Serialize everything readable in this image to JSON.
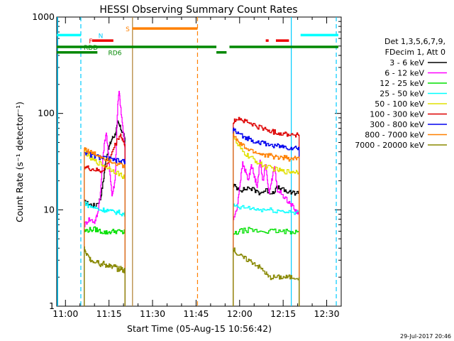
{
  "chart_data": {
    "type": "line",
    "title": "HESSI Observing Summary Count Rates",
    "xlabel": "Start Time (05-Aug-15 10:56:42)",
    "ylabel": "Count Rate (s⁻¹ detector⁻¹)",
    "y_scale": "log",
    "ylim": [
      1,
      1000
    ],
    "xlim_minutes_of_day": [
      657,
      755
    ],
    "x_ticks": [
      {
        "label": "11:00",
        "minute": 660
      },
      {
        "label": "11:15",
        "minute": 675
      },
      {
        "label": "11:30",
        "minute": 690
      },
      {
        "label": "11:45",
        "minute": 705
      },
      {
        "label": "12:00",
        "minute": 720
      },
      {
        "label": "12:15",
        "minute": 735
      },
      {
        "label": "12:30",
        "minute": 750
      }
    ],
    "y_tick_labels": [
      "1",
      "10",
      "100",
      "1000"
    ],
    "legend_placement": "right",
    "legend_header": [
      "Det 1,3,5,6,7,9,",
      "FDecim 1, Att 0"
    ],
    "timestamp": "29-Jul-2017 20:46",
    "flag_labels": {
      "N": "N",
      "S": "S",
      "F": "F",
      "RDD": "RDD",
      "RD6": "RD6"
    },
    "series": [
      {
        "name": "3 - 6 keV",
        "color": "#000000",
        "seg1": [
          [
            666.5,
            12
          ],
          [
            668,
            11.5
          ],
          [
            670,
            11
          ],
          [
            672,
            13
          ],
          [
            673,
            20
          ],
          [
            674,
            35
          ],
          [
            675,
            45
          ],
          [
            676,
            55
          ],
          [
            677,
            60
          ],
          [
            678,
            80
          ],
          [
            679,
            70
          ],
          [
            680,
            60
          ],
          [
            680.5,
            55
          ]
        ],
        "seg2": [
          [
            717.8,
            18
          ],
          [
            719,
            17
          ],
          [
            721,
            16
          ],
          [
            723,
            17
          ],
          [
            725,
            16
          ],
          [
            727,
            15
          ],
          [
            729,
            16
          ],
          [
            731,
            15
          ],
          [
            733,
            17
          ],
          [
            735,
            16
          ],
          [
            737,
            15
          ],
          [
            739,
            15
          ],
          [
            740.5,
            15
          ]
        ]
      },
      {
        "name": "6 - 12 keV",
        "color": "#ff00ff",
        "seg1": [
          [
            666.5,
            7
          ],
          [
            668,
            8
          ],
          [
            670,
            7.5
          ],
          [
            671,
            9
          ],
          [
            672,
            15
          ],
          [
            673,
            40
          ],
          [
            674,
            65
          ],
          [
            675,
            30
          ],
          [
            676,
            14
          ],
          [
            677,
            20
          ],
          [
            678,
            130
          ],
          [
            678.5,
            170
          ],
          [
            679,
            110
          ],
          [
            680,
            60
          ],
          [
            680.5,
            45
          ]
        ],
        "seg2": [
          [
            717.8,
            8
          ],
          [
            719,
            10
          ],
          [
            720,
            18
          ],
          [
            721,
            30
          ],
          [
            722,
            25
          ],
          [
            723,
            20
          ],
          [
            724,
            30
          ],
          [
            725,
            22
          ],
          [
            726,
            18
          ],
          [
            727,
            32
          ],
          [
            728,
            20
          ],
          [
            729,
            30
          ],
          [
            730,
            15
          ],
          [
            731,
            20
          ],
          [
            732,
            28
          ],
          [
            733,
            16
          ],
          [
            735,
            14
          ],
          [
            737,
            12
          ],
          [
            739,
            10
          ],
          [
            740.5,
            9
          ]
        ]
      },
      {
        "name": "12 - 25 keV",
        "color": "#00e000",
        "seg1": [
          [
            666.5,
            6
          ],
          [
            668,
            6.2
          ],
          [
            670,
            6.3
          ],
          [
            672,
            6
          ],
          [
            674,
            5.8
          ],
          [
            676,
            6
          ],
          [
            678,
            6
          ],
          [
            680,
            5.8
          ],
          [
            680.5,
            6
          ]
        ],
        "seg2": [
          [
            717.8,
            5.5
          ],
          [
            720,
            6
          ],
          [
            723,
            6.2
          ],
          [
            726,
            6
          ],
          [
            729,
            6
          ],
          [
            732,
            6
          ],
          [
            735,
            5.9
          ],
          [
            738,
            6
          ],
          [
            740.5,
            6
          ]
        ]
      },
      {
        "name": "25 - 50 keV",
        "color": "#00ffff",
        "seg1": [
          [
            666.5,
            12
          ],
          [
            668,
            11
          ],
          [
            670,
            10.5
          ],
          [
            672,
            10
          ],
          [
            674,
            10
          ],
          [
            676,
            9.5
          ],
          [
            678,
            9.5
          ],
          [
            680,
            9
          ],
          [
            680.5,
            9
          ]
        ],
        "seg2": [
          [
            717.8,
            11
          ],
          [
            720,
            10.5
          ],
          [
            723,
            10.5
          ],
          [
            726,
            10
          ],
          [
            729,
            10
          ],
          [
            732,
            9.8
          ],
          [
            735,
            9.6
          ],
          [
            738,
            9.5
          ],
          [
            740.5,
            9.5
          ]
        ]
      },
      {
        "name": "50 - 100 keV",
        "color": "#e0e000",
        "seg1": [
          [
            666.5,
            42
          ],
          [
            668,
            35
          ],
          [
            670,
            32
          ],
          [
            672,
            30
          ],
          [
            674,
            28
          ],
          [
            676,
            26
          ],
          [
            678,
            24
          ],
          [
            680,
            22
          ],
          [
            680.5,
            22
          ]
        ],
        "seg2": [
          [
            717.8,
            60
          ],
          [
            719,
            48
          ],
          [
            721,
            40
          ],
          [
            723,
            36
          ],
          [
            725,
            33
          ],
          [
            727,
            30
          ],
          [
            729,
            28
          ],
          [
            731,
            27
          ],
          [
            733,
            26
          ],
          [
            735,
            25
          ],
          [
            737,
            25
          ],
          [
            739,
            25
          ],
          [
            740.5,
            25
          ]
        ]
      },
      {
        "name": "100 - 300 keV",
        "color": "#dd0000",
        "seg1": [
          [
            666.5,
            28
          ],
          [
            668,
            27
          ],
          [
            670,
            26
          ],
          [
            672,
            25
          ],
          [
            674,
            28
          ],
          [
            676,
            40
          ],
          [
            678,
            55
          ],
          [
            679,
            60
          ],
          [
            680,
            50
          ],
          [
            680.5,
            48
          ]
        ],
        "seg2": [
          [
            717.8,
            80
          ],
          [
            719,
            90
          ],
          [
            721,
            85
          ],
          [
            723,
            80
          ],
          [
            725,
            75
          ],
          [
            727,
            72
          ],
          [
            729,
            68
          ],
          [
            731,
            65
          ],
          [
            733,
            63
          ],
          [
            735,
            62
          ],
          [
            737,
            61
          ],
          [
            739,
            60
          ],
          [
            740.5,
            60
          ]
        ]
      },
      {
        "name": "300 - 800 keV",
        "color": "#0000ee",
        "seg1": [
          [
            666.5,
            40
          ],
          [
            668,
            38
          ],
          [
            670,
            36
          ],
          [
            672,
            35
          ],
          [
            674,
            34
          ],
          [
            676,
            33
          ],
          [
            678,
            32
          ],
          [
            680,
            32
          ],
          [
            680.5,
            31
          ]
        ],
        "seg2": [
          [
            717.8,
            70
          ],
          [
            719,
            62
          ],
          [
            721,
            58
          ],
          [
            723,
            55
          ],
          [
            725,
            52
          ],
          [
            727,
            50
          ],
          [
            729,
            48
          ],
          [
            731,
            47
          ],
          [
            733,
            46
          ],
          [
            735,
            45
          ],
          [
            737,
            44
          ],
          [
            739,
            44
          ],
          [
            740.5,
            44
          ]
        ]
      },
      {
        "name": "800 - 7000 keV",
        "color": "#ff8000",
        "seg1": [
          [
            666.5,
            44
          ],
          [
            668,
            40
          ],
          [
            670,
            38
          ],
          [
            672,
            36
          ],
          [
            674,
            34
          ],
          [
            676,
            32
          ],
          [
            678,
            30
          ],
          [
            680,
            28
          ],
          [
            680.5,
            28
          ]
        ],
        "seg2": [
          [
            717.8,
            62
          ],
          [
            719,
            52
          ],
          [
            721,
            46
          ],
          [
            723,
            42
          ],
          [
            725,
            40
          ],
          [
            727,
            38
          ],
          [
            729,
            37
          ],
          [
            731,
            36
          ],
          [
            733,
            35
          ],
          [
            735,
            35
          ],
          [
            737,
            34
          ],
          [
            739,
            34
          ],
          [
            740.5,
            34
          ]
        ]
      },
      {
        "name": "7000 - 20000 keV",
        "color": "#888800",
        "seg1": [
          [
            666.5,
            4
          ],
          [
            667,
            3.5
          ],
          [
            668,
            3.2
          ],
          [
            669,
            3
          ],
          [
            670,
            2.9
          ],
          [
            671,
            3
          ],
          [
            672,
            2.7
          ],
          [
            673,
            2.8
          ],
          [
            674,
            2.6
          ],
          [
            675,
            2.7
          ],
          [
            676,
            2.5
          ],
          [
            677,
            2.6
          ],
          [
            678,
            2.4
          ],
          [
            679,
            2.5
          ],
          [
            680,
            2.3
          ],
          [
            680.5,
            2.4
          ]
        ],
        "seg2": [
          [
            717.8,
            4
          ],
          [
            719,
            3.5
          ],
          [
            721,
            3.2
          ],
          [
            723,
            3
          ],
          [
            725,
            2.8
          ],
          [
            727,
            2.5
          ],
          [
            729,
            2.2
          ],
          [
            730,
            2
          ],
          [
            732,
            2
          ],
          [
            734,
            2
          ],
          [
            736,
            2
          ],
          [
            738,
            2
          ],
          [
            740.5,
            2
          ]
        ]
      }
    ],
    "flags": [
      {
        "label": "N",
        "color": "#00ffff",
        "y": 650,
        "segments": [
          [
            657,
            665.3
          ],
          [
            741,
            754
          ]
        ]
      },
      {
        "label": "S",
        "color": "#ff8000",
        "y": 760,
        "segments": [
          [
            683,
            705.5
          ]
        ]
      },
      {
        "label": "F",
        "color": "#ee0000",
        "y": 570,
        "segments": [
          [
            669.2,
            676.5
          ],
          [
            729,
            730
          ],
          [
            732.5,
            737
          ]
        ]
      },
      {
        "label": "RDD",
        "color": "#008800",
        "y": 490,
        "segments": [
          [
            657,
            712
          ],
          [
            716.5,
            754
          ]
        ]
      },
      {
        "label": "RD6",
        "color": "#008800",
        "y": 430,
        "segments": [
          [
            657,
            671
          ],
          [
            712,
            715.5
          ]
        ]
      }
    ],
    "vlines": [
      {
        "minute": 665.3,
        "color": "#00ccff",
        "style": "dashed"
      },
      {
        "minute": 683.1,
        "color": "#b08030",
        "style": "solid"
      },
      {
        "minute": 705.5,
        "color": "#ff8000",
        "style": "dashed"
      },
      {
        "minute": 737.8,
        "color": "#00ccff",
        "style": "solid"
      },
      {
        "minute": 753.3,
        "color": "#00ccff",
        "style": "dashed"
      }
    ],
    "left_edge_line": {
      "minute": 657.3,
      "color": "#00ccff"
    }
  }
}
